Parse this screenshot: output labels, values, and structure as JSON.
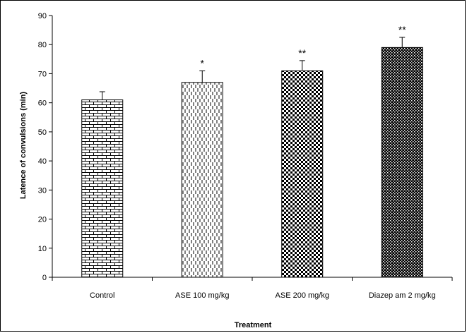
{
  "chart_data": {
    "type": "bar",
    "title": "",
    "xlabel": "Treatment",
    "ylabel": "Latence of convulsions (min)",
    "ylim": [
      0,
      90
    ],
    "yticks": [
      0,
      10,
      20,
      30,
      40,
      50,
      60,
      70,
      80,
      90
    ],
    "categories": [
      "Control",
      "ASE 100 mg/kg",
      "ASE 200 mg/kg",
      "Diazep am 2 mg/kg"
    ],
    "values": [
      61,
      67,
      71,
      79
    ],
    "errors": [
      2.8,
      4.0,
      3.5,
      3.5
    ],
    "significance": [
      "",
      "*",
      "**",
      "**"
    ],
    "patterns": [
      "brick",
      "dashed-vertical",
      "checker-small",
      "checker-dense"
    ],
    "grid": false,
    "legend": "none",
    "bar_color": "#000000",
    "background": "#ffffff"
  }
}
